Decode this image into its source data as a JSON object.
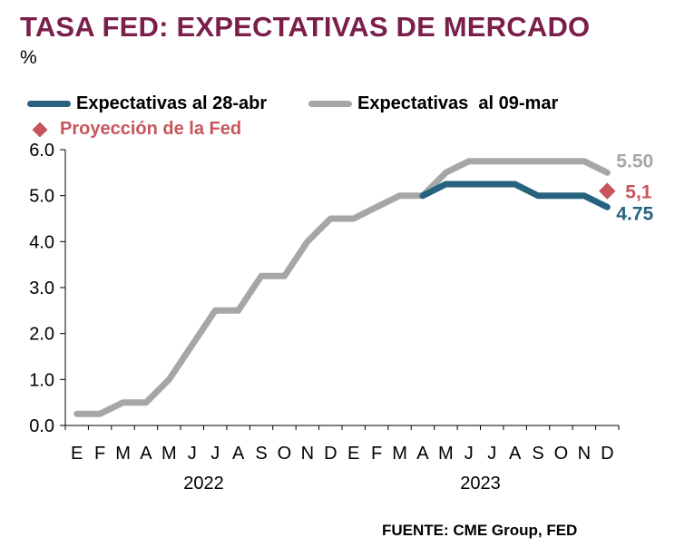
{
  "title": "TASA FED: EXPECTATIVAS DE MERCADO",
  "unit": "%",
  "source": "FUENTE: CME Group, FED",
  "colors": {
    "title": "#7a1f4a",
    "apr": "#27627f",
    "mar": "#a6a6a6",
    "fed": "#c8555b"
  },
  "chart_data": {
    "type": "line",
    "title": "TASA FED: EXPECTATIVAS DE MERCADO",
    "ylabel": "%",
    "ylim": [
      0,
      6
    ],
    "yticks": [
      "0.0",
      "1.0",
      "2.0",
      "3.0",
      "4.0",
      "5.0",
      "6.0"
    ],
    "categories": [
      "E",
      "F",
      "M",
      "A",
      "M",
      "J",
      "J",
      "A",
      "S",
      "O",
      "N",
      "D",
      "E",
      "F",
      "M",
      "A",
      "M",
      "J",
      "J",
      "A",
      "S",
      "O",
      "N",
      "D"
    ],
    "years": [
      "2022",
      "2023"
    ],
    "legend_position": "top-left",
    "series": [
      {
        "name": "Expectativas  al 09-mar",
        "color": "#a6a6a6",
        "end_label": "5.50",
        "values": [
          0.25,
          0.25,
          0.5,
          0.5,
          1.0,
          1.75,
          2.5,
          2.5,
          3.25,
          3.25,
          4.0,
          4.5,
          4.5,
          4.75,
          5.0,
          5.0,
          5.5,
          5.75,
          5.75,
          5.75,
          5.75,
          5.75,
          5.75,
          5.5
        ]
      },
      {
        "name": "Expectativas al 28-abr",
        "color": "#27627f",
        "end_label": "4.75",
        "values": [
          null,
          null,
          null,
          null,
          null,
          null,
          null,
          null,
          null,
          null,
          null,
          null,
          null,
          null,
          null,
          5.0,
          5.25,
          5.25,
          5.25,
          5.25,
          5.0,
          5.0,
          5.0,
          4.75
        ]
      }
    ],
    "points": [
      {
        "name": "Proyección de la Fed",
        "color": "#c8555b",
        "x_index": 23,
        "value": 5.1,
        "label": "5,1"
      }
    ]
  }
}
